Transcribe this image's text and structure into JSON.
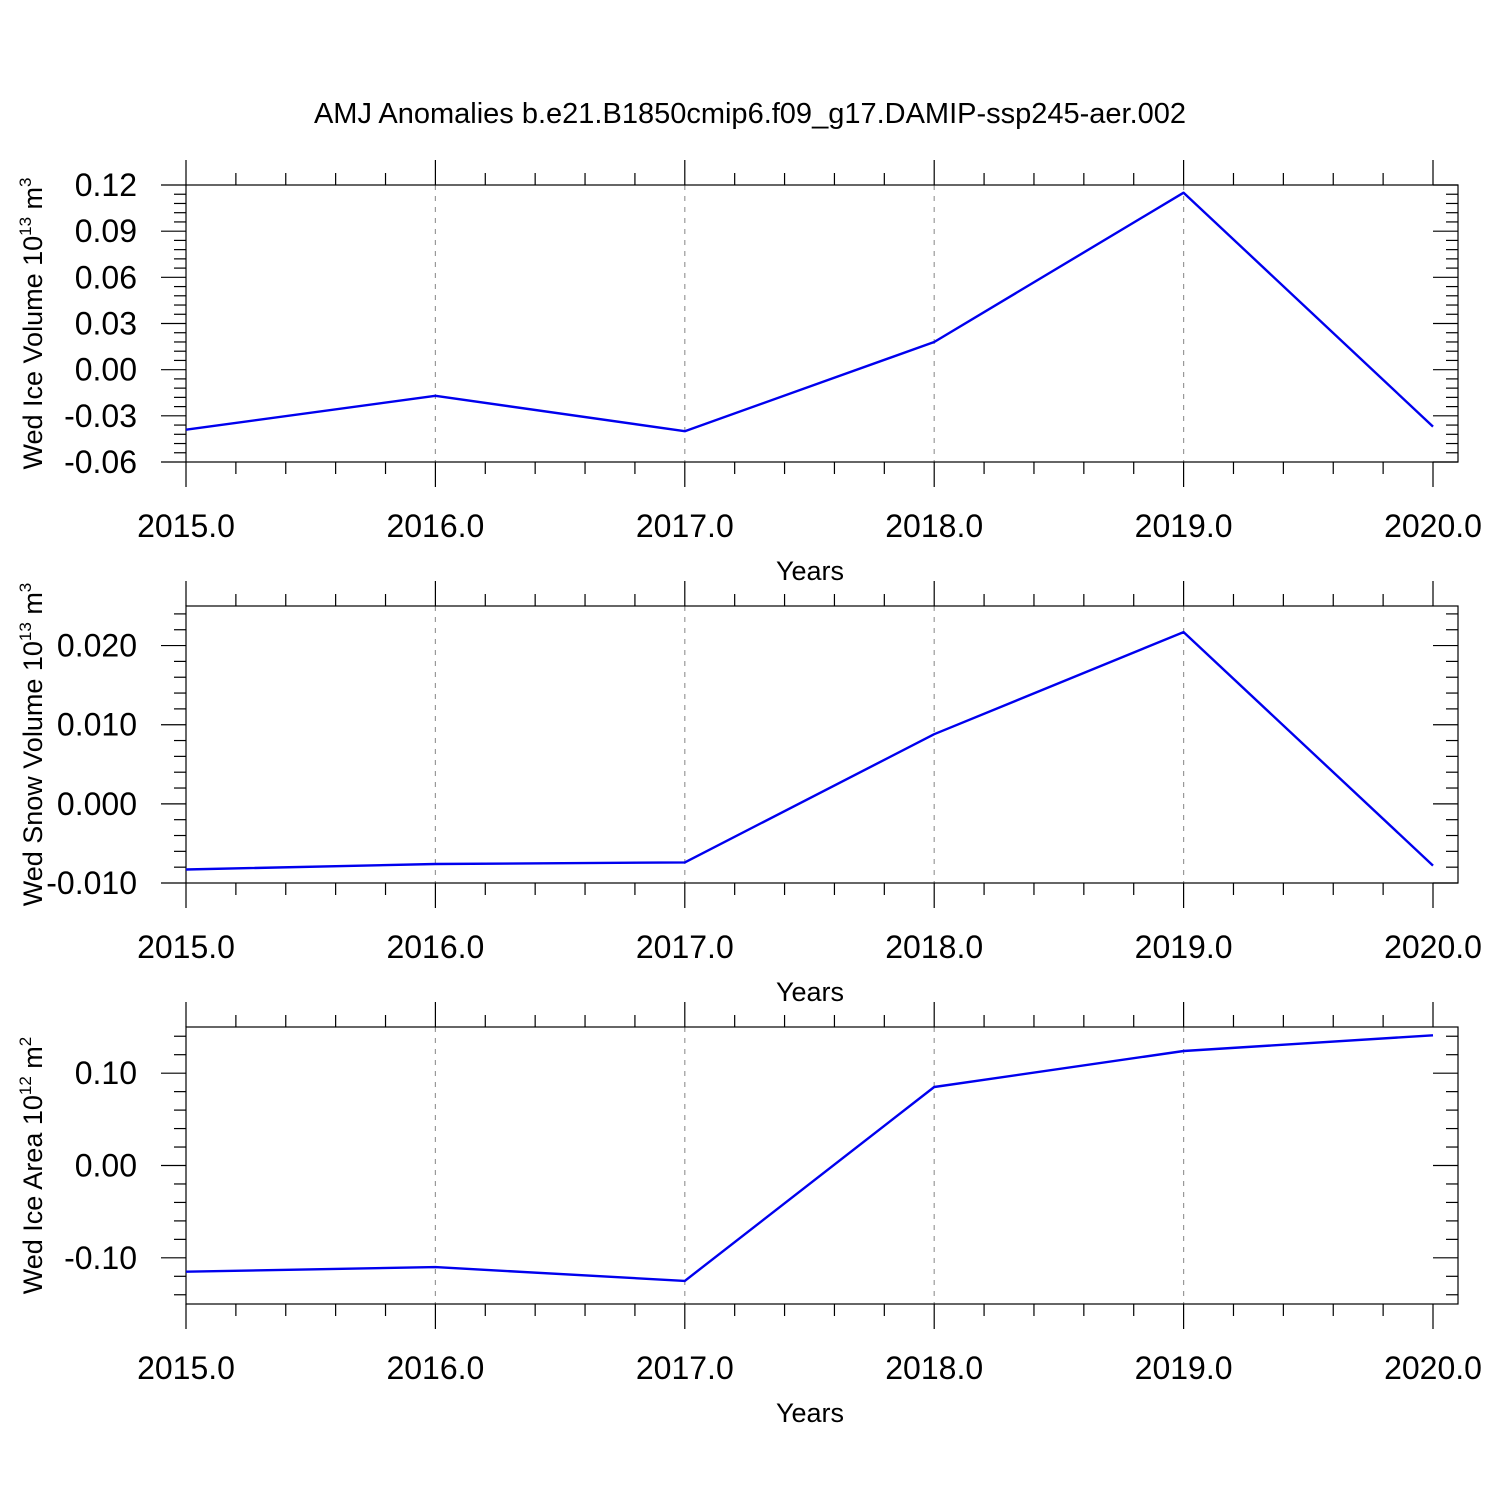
{
  "title": "AMJ Anomalies b.e21.B1850cmip6.f09_g17.DAMIP-ssp245-aer.002",
  "colors": {
    "line": "#0000ee",
    "frame": "#000000",
    "grid": "#999999"
  },
  "chart_data": [
    {
      "type": "line",
      "x": [
        2015,
        2016,
        2017,
        2018,
        2019,
        2020
      ],
      "series": [
        {
          "values": [
            -0.039,
            -0.017,
            -0.04,
            0.018,
            0.115,
            -0.037
          ]
        }
      ],
      "xlabel": "Years",
      "ylabel_main": "Wed Ice Volume 10",
      "ylabel_exp": "13",
      "ylabel_unit": " m",
      "ylabel_unit_exp": "3",
      "xlim": [
        2015,
        2020
      ],
      "ylim": [
        -0.06,
        0.12
      ],
      "yticks": [
        -0.06,
        -0.03,
        0.0,
        0.03,
        0.06,
        0.09,
        0.12
      ],
      "ytick_labels": [
        "-0.06",
        "-0.03",
        "0.00",
        "0.03",
        "0.06",
        "0.09",
        "0.12"
      ],
      "yminor_step": 0.006,
      "xticks": [
        2015,
        2016,
        2017,
        2018,
        2019,
        2020
      ],
      "xtick_labels": [
        "2015.0",
        "2016.0",
        "2017.0",
        "2018.0",
        "2019.0",
        "2020.0"
      ],
      "xminor_step": 0.2,
      "grid": "vertical dashed"
    },
    {
      "type": "line",
      "x": [
        2015,
        2016,
        2017,
        2018,
        2019,
        2020
      ],
      "series": [
        {
          "values": [
            -0.0083,
            -0.0076,
            -0.0074,
            0.0088,
            0.0217,
            -0.0078
          ]
        }
      ],
      "xlabel": "Years",
      "ylabel_main": "Wed Snow Volume 10",
      "ylabel_exp": "13",
      "ylabel_unit": " m",
      "ylabel_unit_exp": "3",
      "xlim": [
        2015,
        2020
      ],
      "ylim": [
        -0.01,
        0.025
      ],
      "yticks": [
        -0.01,
        0.0,
        0.01,
        0.02
      ],
      "ytick_labels": [
        "-0.010",
        "0.000",
        "0.010",
        "0.020"
      ],
      "yminor_step": 0.002,
      "xticks": [
        2015,
        2016,
        2017,
        2018,
        2019,
        2020
      ],
      "xtick_labels": [
        "2015.0",
        "2016.0",
        "2017.0",
        "2018.0",
        "2019.0",
        "2020.0"
      ],
      "xminor_step": 0.2,
      "grid": "vertical dashed"
    },
    {
      "type": "line",
      "x": [
        2015,
        2016,
        2017,
        2018,
        2019,
        2020
      ],
      "series": [
        {
          "values": [
            -0.115,
            -0.11,
            -0.125,
            0.085,
            0.124,
            0.141
          ]
        }
      ],
      "xlabel": "Years",
      "ylabel_main": "Wed Ice Area 10",
      "ylabel_exp": "12",
      "ylabel_unit": " m",
      "ylabel_unit_exp": "2",
      "xlim": [
        2015,
        2020
      ],
      "ylim": [
        -0.15,
        0.15
      ],
      "yticks": [
        -0.1,
        0.0,
        0.1
      ],
      "ytick_labels": [
        "-0.10",
        "0.00",
        "0.10"
      ],
      "yminor_step": 0.02,
      "xticks": [
        2015,
        2016,
        2017,
        2018,
        2019,
        2020
      ],
      "xtick_labels": [
        "2015.0",
        "2016.0",
        "2017.0",
        "2018.0",
        "2019.0",
        "2020.0"
      ],
      "xminor_step": 0.2,
      "grid": "vertical dashed"
    }
  ]
}
